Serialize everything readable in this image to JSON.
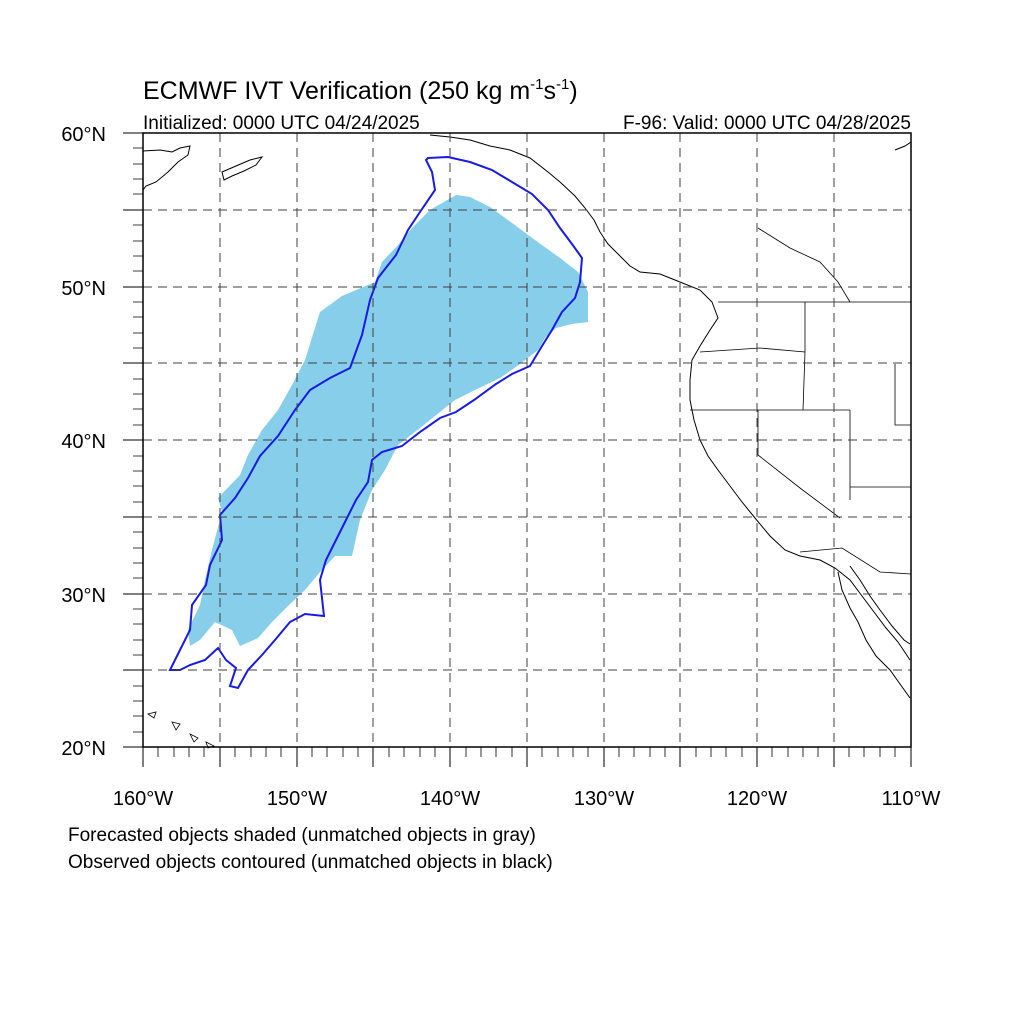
{
  "title": {
    "main": "ECMWF IVT Verification (250 kg m",
    "exp1": "-1",
    "mid": "s",
    "exp2": "-1",
    "close": ")"
  },
  "initialized_label": "Initialized: 0000 UTC 04/24/2025",
  "valid_label": "F-96: Valid: 0000 UTC 04/28/2025",
  "lat_labels": [
    "60°N",
    "50°N",
    "40°N",
    "30°N",
    "20°N"
  ],
  "lon_labels": [
    "160°W",
    "150°W",
    "140°W",
    "130°W",
    "120°W",
    "110°W"
  ],
  "legend": {
    "line1": "Forecasted objects shaded (unmatched objects in gray)",
    "line2": "Observed objects contoured (unmatched objects in black)"
  },
  "colors": {
    "forecast_fill": "#87ceeb",
    "observed_contour": "#1a1ae6",
    "coastline": "#000000",
    "grid": "#404040"
  },
  "extent": {
    "lon_min": -160,
    "lon_max": -110,
    "lat_min": 20,
    "lat_max": 60
  }
}
